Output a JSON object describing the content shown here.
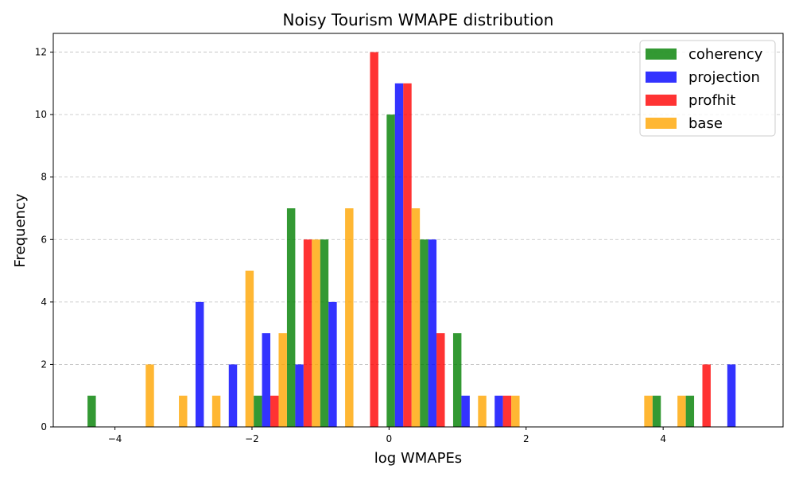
{
  "chart_data": {
    "type": "bar",
    "title": "Noisy Tourism WMAPE distribution",
    "xlabel": "log WMAPEs",
    "ylabel": "Frequency",
    "xlim": [
      -4.9,
      5.75
    ],
    "ylim": [
      0,
      12.6
    ],
    "xticks": [
      -4,
      -2,
      0,
      2,
      4
    ],
    "yticks": [
      0,
      2,
      4,
      6,
      8,
      10,
      12
    ],
    "grid": "y-dashed",
    "legend_position": "top-right",
    "bin_edges": [
      -4.4,
      -3.915,
      -3.43,
      -2.945,
      -2.46,
      -1.975,
      -1.49,
      -1.005,
      -0.52,
      -0.035,
      0.45,
      0.935,
      1.42,
      1.905,
      2.39,
      2.875,
      3.36,
      3.845,
      4.33,
      4.815,
      5.3
    ],
    "series": [
      {
        "name": "coherency",
        "color": "#008000",
        "values": [
          1,
          0,
          0,
          0,
          0,
          1,
          7,
          6,
          0,
          10,
          6,
          3,
          0,
          0,
          0,
          0,
          0,
          1,
          1,
          0
        ]
      },
      {
        "name": "projection",
        "color": "#0000ff",
        "values": [
          0,
          0,
          0,
          4,
          2,
          3,
          2,
          4,
          0,
          11,
          6,
          1,
          1,
          0,
          0,
          0,
          0,
          0,
          0,
          2
        ]
      },
      {
        "name": "profhit",
        "color": "#ff0000",
        "values": [
          0,
          0,
          0,
          0,
          0,
          1,
          6,
          0,
          12,
          11,
          3,
          0,
          1,
          0,
          0,
          0,
          0,
          0,
          2,
          0
        ]
      },
      {
        "name": "base",
        "color": "#ffa500",
        "values": [
          0,
          2,
          1,
          1,
          5,
          3,
          6,
          7,
          0,
          7,
          0,
          1,
          1,
          0,
          0,
          0,
          1,
          1,
          0,
          0
        ]
      }
    ]
  }
}
